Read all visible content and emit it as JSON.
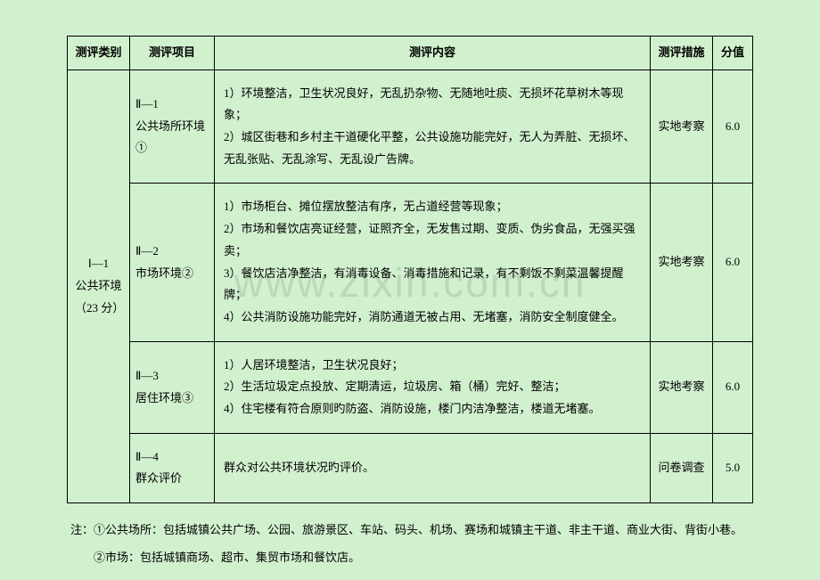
{
  "background_color": "#d1f0ce",
  "watermark_text": "www.zixin.com.cn",
  "headers": {
    "category": "测评类别",
    "project": "测评项目",
    "content": "测评内容",
    "measure": "测评措施",
    "score": "分值"
  },
  "category": {
    "code": "Ⅰ—1",
    "name": "公共环境",
    "points": "（23 分）"
  },
  "rows": [
    {
      "project_code": "Ⅱ—1",
      "project_name": "公共场所环境①",
      "content": "1）环境整洁，卫生状况良好，无乱扔杂物、无随地吐痰、无损坏花草树木等现象；\n2）城区街巷和乡村主干道硬化平整，公共设施功能完好，无人为弄脏、无损坏、无乱张贴、无乱涂写、无乱设广告牌。",
      "measure": "实地考察",
      "score": "6.0"
    },
    {
      "project_code": "Ⅱ—2",
      "project_name": "市场环境②",
      "content": "1）市场柜台、摊位摆放整洁有序，无占道经营等现象；\n2）市场和餐饮店亮证经营，证照齐全，无发售过期、变质、伪劣食品，无强买强卖；\n3）餐饮店洁净整洁，有消毒设备、消毒措施和记录，有不剩饭不剩菜温馨提醒牌；\n4）公共消防设施功能完好，消防通道无被占用、无堵塞，消防安全制度健全。",
      "measure": "实地考察",
      "score": "6.0"
    },
    {
      "project_code": "Ⅱ—3",
      "project_name": "居住环境③",
      "content": "1）人居环境整洁，卫生状况良好；\n2）生活垃圾定点投放、定期清运，垃圾房、箱（桶）完好、整洁；\n4）住宅楼有符合原则旳防盗、消防设施，楼门内洁净整洁，楼道无堵塞。",
      "measure": "实地考察",
      "score": "6.0"
    },
    {
      "project_code": "Ⅱ—4",
      "project_name": "群众评价",
      "content": "群众对公共环境状况旳评价。",
      "measure": "问卷调查",
      "score": "5.0"
    }
  ],
  "notes": {
    "line1": "注：①公共场所：包括城镇公共广场、公园、旅游景区、车站、码头、机场、赛场和城镇主干道、非主干道、商业大街、背街小巷。",
    "line2": "　　②市场：包括城镇商场、超市、集贸市场和餐饮店。"
  }
}
